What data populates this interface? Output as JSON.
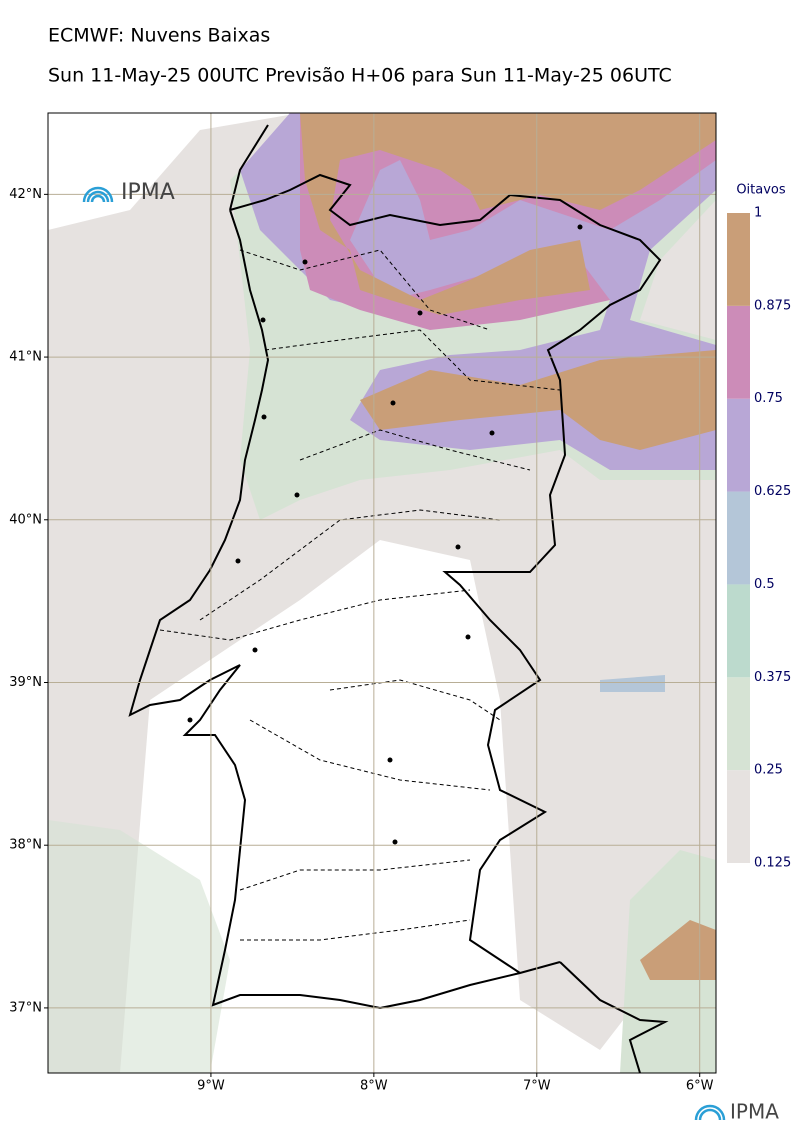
{
  "header": {
    "title": "ECMWF: Nuvens Baixas",
    "subtitle": "Sun 11-May-25 00UTC Previsão H+06 para Sun 11-May-25 06UTC"
  },
  "logo_text": "IPMA",
  "map": {
    "lonlim": [
      -10,
      -5.9
    ],
    "latlim": [
      36.6,
      42.5
    ],
    "lonticks": [
      {
        "value": -9,
        "label": "9°W"
      },
      {
        "value": -8,
        "label": "8°W"
      },
      {
        "value": -7,
        "label": "7°W"
      },
      {
        "value": -6,
        "label": "6°W"
      }
    ],
    "latticks": [
      {
        "value": 42,
        "label": "42°N"
      },
      {
        "value": 41,
        "label": "41°N"
      },
      {
        "value": 40,
        "label": "40°N"
      },
      {
        "value": 39,
        "label": "39°N"
      },
      {
        "value": 38,
        "label": "38°N"
      },
      {
        "value": 37,
        "label": "37°N"
      }
    ]
  },
  "colorbar": {
    "label": "Oitavos",
    "lim": [
      0.125,
      1
    ],
    "ticks": [
      0.125,
      0.25,
      0.375,
      0.5,
      0.625,
      0.75,
      0.875,
      1
    ],
    "colors": [
      "#e6e2e0",
      "#d6e3d4",
      "#bcdacd",
      "#b4c6d8",
      "#b8a7d6",
      "#cc8cb8",
      "#c99e78"
    ]
  }
}
